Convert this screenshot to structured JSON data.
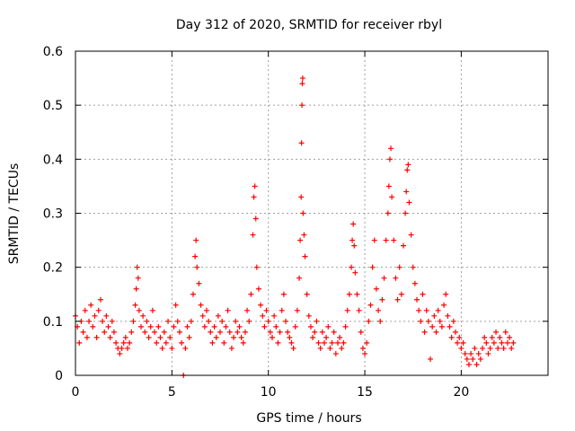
{
  "chart_data": {
    "type": "scatter",
    "title": "Day 312 of 2020, SRMTID for receiver rbyl",
    "xlabel": "GPS time / hours",
    "ylabel": "SRMTID / TECUs",
    "xlim": [
      0,
      24.5
    ],
    "ylim": [
      0,
      0.6
    ],
    "xticks": [
      0,
      5,
      10,
      15,
      20
    ],
    "xtick_labels": [
      "0",
      "5",
      "10",
      "15",
      "20"
    ],
    "yticks": [
      0,
      0.1,
      0.2,
      0.3,
      0.4,
      0.5,
      0.6
    ],
    "ytick_labels": [
      "0",
      "0.1",
      "0.2",
      "0.3",
      "0.4",
      "0.5",
      "0.6"
    ],
    "grid": true,
    "series": [
      {
        "name": "SRMTID",
        "color": "#ff0000",
        "marker": "plus",
        "points": [
          [
            0.0,
            0.11
          ],
          [
            0.1,
            0.09
          ],
          [
            0.2,
            0.06
          ],
          [
            0.3,
            0.1
          ],
          [
            0.4,
            0.08
          ],
          [
            0.5,
            0.12
          ],
          [
            0.6,
            0.07
          ],
          [
            0.7,
            0.1
          ],
          [
            0.8,
            0.13
          ],
          [
            0.9,
            0.09
          ],
          [
            1.0,
            0.11
          ],
          [
            1.1,
            0.07
          ],
          [
            1.2,
            0.12
          ],
          [
            1.3,
            0.14
          ],
          [
            1.4,
            0.1
          ],
          [
            1.5,
            0.08
          ],
          [
            1.6,
            0.11
          ],
          [
            1.7,
            0.09
          ],
          [
            1.8,
            0.07
          ],
          [
            1.9,
            0.1
          ],
          [
            2.0,
            0.08
          ],
          [
            2.1,
            0.06
          ],
          [
            2.2,
            0.05
          ],
          [
            2.3,
            0.04
          ],
          [
            2.4,
            0.05
          ],
          [
            2.5,
            0.06
          ],
          [
            2.6,
            0.07
          ],
          [
            2.7,
            0.05
          ],
          [
            2.8,
            0.06
          ],
          [
            2.9,
            0.08
          ],
          [
            3.0,
            0.1
          ],
          [
            3.1,
            0.13
          ],
          [
            3.15,
            0.16
          ],
          [
            3.2,
            0.2
          ],
          [
            3.25,
            0.18
          ],
          [
            3.3,
            0.12
          ],
          [
            3.4,
            0.09
          ],
          [
            3.5,
            0.11
          ],
          [
            3.6,
            0.08
          ],
          [
            3.7,
            0.1
          ],
          [
            3.8,
            0.07
          ],
          [
            3.9,
            0.09
          ],
          [
            4.0,
            0.12
          ],
          [
            4.1,
            0.08
          ],
          [
            4.2,
            0.06
          ],
          [
            4.3,
            0.09
          ],
          [
            4.4,
            0.07
          ],
          [
            4.5,
            0.05
          ],
          [
            4.6,
            0.08
          ],
          [
            4.7,
            0.06
          ],
          [
            4.8,
            0.1
          ],
          [
            4.9,
            0.07
          ],
          [
            5.0,
            0.05
          ],
          [
            5.1,
            0.09
          ],
          [
            5.2,
            0.13
          ],
          [
            5.3,
            0.1
          ],
          [
            5.4,
            0.08
          ],
          [
            5.5,
            0.06
          ],
          [
            5.6,
            0.0
          ],
          [
            5.7,
            0.05
          ],
          [
            5.8,
            0.09
          ],
          [
            5.9,
            0.07
          ],
          [
            6.0,
            0.1
          ],
          [
            6.1,
            0.15
          ],
          [
            6.2,
            0.22
          ],
          [
            6.25,
            0.25
          ],
          [
            6.3,
            0.2
          ],
          [
            6.4,
            0.17
          ],
          [
            6.5,
            0.13
          ],
          [
            6.6,
            0.11
          ],
          [
            6.7,
            0.09
          ],
          [
            6.8,
            0.12
          ],
          [
            6.9,
            0.1
          ],
          [
            7.0,
            0.08
          ],
          [
            7.1,
            0.06
          ],
          [
            7.2,
            0.09
          ],
          [
            7.3,
            0.07
          ],
          [
            7.4,
            0.11
          ],
          [
            7.5,
            0.08
          ],
          [
            7.6,
            0.1
          ],
          [
            7.7,
            0.06
          ],
          [
            7.8,
            0.09
          ],
          [
            7.9,
            0.12
          ],
          [
            8.0,
            0.08
          ],
          [
            8.1,
            0.05
          ],
          [
            8.2,
            0.07
          ],
          [
            8.3,
            0.1
          ],
          [
            8.4,
            0.08
          ],
          [
            8.5,
            0.09
          ],
          [
            8.6,
            0.07
          ],
          [
            8.7,
            0.06
          ],
          [
            8.8,
            0.08
          ],
          [
            8.9,
            0.12
          ],
          [
            9.0,
            0.1
          ],
          [
            9.1,
            0.15
          ],
          [
            9.2,
            0.26
          ],
          [
            9.25,
            0.33
          ],
          [
            9.3,
            0.35
          ],
          [
            9.35,
            0.29
          ],
          [
            9.4,
            0.2
          ],
          [
            9.5,
            0.16
          ],
          [
            9.6,
            0.13
          ],
          [
            9.7,
            0.11
          ],
          [
            9.8,
            0.09
          ],
          [
            9.9,
            0.12
          ],
          [
            10.0,
            0.1
          ],
          [
            10.1,
            0.08
          ],
          [
            10.2,
            0.07
          ],
          [
            10.3,
            0.11
          ],
          [
            10.4,
            0.09
          ],
          [
            10.5,
            0.06
          ],
          [
            10.6,
            0.08
          ],
          [
            10.7,
            0.12
          ],
          [
            10.8,
            0.15
          ],
          [
            10.9,
            0.1
          ],
          [
            11.0,
            0.08
          ],
          [
            11.1,
            0.07
          ],
          [
            11.2,
            0.06
          ],
          [
            11.3,
            0.05
          ],
          [
            11.4,
            0.09
          ],
          [
            11.5,
            0.12
          ],
          [
            11.6,
            0.18
          ],
          [
            11.65,
            0.25
          ],
          [
            11.7,
            0.33
          ],
          [
            11.72,
            0.43
          ],
          [
            11.74,
            0.5
          ],
          [
            11.76,
            0.54
          ],
          [
            11.78,
            0.55
          ],
          [
            11.8,
            0.3
          ],
          [
            11.85,
            0.26
          ],
          [
            11.9,
            0.22
          ],
          [
            12.0,
            0.15
          ],
          [
            12.1,
            0.11
          ],
          [
            12.2,
            0.09
          ],
          [
            12.3,
            0.07
          ],
          [
            12.4,
            0.08
          ],
          [
            12.5,
            0.1
          ],
          [
            12.6,
            0.06
          ],
          [
            12.7,
            0.05
          ],
          [
            12.8,
            0.08
          ],
          [
            12.9,
            0.06
          ],
          [
            13.0,
            0.07
          ],
          [
            13.1,
            0.09
          ],
          [
            13.2,
            0.05
          ],
          [
            13.3,
            0.06
          ],
          [
            13.4,
            0.08
          ],
          [
            13.5,
            0.04
          ],
          [
            13.6,
            0.06
          ],
          [
            13.7,
            0.07
          ],
          [
            13.8,
            0.05
          ],
          [
            13.9,
            0.06
          ],
          [
            14.0,
            0.09
          ],
          [
            14.1,
            0.12
          ],
          [
            14.2,
            0.15
          ],
          [
            14.3,
            0.2
          ],
          [
            14.35,
            0.25
          ],
          [
            14.4,
            0.28
          ],
          [
            14.45,
            0.24
          ],
          [
            14.5,
            0.19
          ],
          [
            14.6,
            0.15
          ],
          [
            14.7,
            0.12
          ],
          [
            14.8,
            0.08
          ],
          [
            14.9,
            0.05
          ],
          [
            15.0,
            0.04
          ],
          [
            15.1,
            0.06
          ],
          [
            15.2,
            0.1
          ],
          [
            15.3,
            0.13
          ],
          [
            15.4,
            0.2
          ],
          [
            15.5,
            0.25
          ],
          [
            15.6,
            0.16
          ],
          [
            15.7,
            0.12
          ],
          [
            15.8,
            0.1
          ],
          [
            15.9,
            0.14
          ],
          [
            16.0,
            0.18
          ],
          [
            16.1,
            0.25
          ],
          [
            16.2,
            0.3
          ],
          [
            16.25,
            0.35
          ],
          [
            16.3,
            0.4
          ],
          [
            16.35,
            0.42
          ],
          [
            16.4,
            0.33
          ],
          [
            16.5,
            0.25
          ],
          [
            16.6,
            0.18
          ],
          [
            16.7,
            0.14
          ],
          [
            16.8,
            0.2
          ],
          [
            16.9,
            0.15
          ],
          [
            17.0,
            0.24
          ],
          [
            17.1,
            0.3
          ],
          [
            17.15,
            0.34
          ],
          [
            17.2,
            0.38
          ],
          [
            17.25,
            0.39
          ],
          [
            17.3,
            0.32
          ],
          [
            17.4,
            0.26
          ],
          [
            17.5,
            0.2
          ],
          [
            17.6,
            0.17
          ],
          [
            17.7,
            0.14
          ],
          [
            17.8,
            0.12
          ],
          [
            17.9,
            0.1
          ],
          [
            18.0,
            0.15
          ],
          [
            18.1,
            0.08
          ],
          [
            18.2,
            0.12
          ],
          [
            18.3,
            0.1
          ],
          [
            18.4,
            0.03
          ],
          [
            18.5,
            0.09
          ],
          [
            18.6,
            0.11
          ],
          [
            18.7,
            0.08
          ],
          [
            18.8,
            0.12
          ],
          [
            18.9,
            0.1
          ],
          [
            19.0,
            0.09
          ],
          [
            19.1,
            0.13
          ],
          [
            19.2,
            0.15
          ],
          [
            19.3,
            0.11
          ],
          [
            19.4,
            0.09
          ],
          [
            19.5,
            0.07
          ],
          [
            19.6,
            0.1
          ],
          [
            19.7,
            0.08
          ],
          [
            19.8,
            0.06
          ],
          [
            19.9,
            0.07
          ],
          [
            20.0,
            0.05
          ],
          [
            20.1,
            0.06
          ],
          [
            20.2,
            0.04
          ],
          [
            20.3,
            0.03
          ],
          [
            20.4,
            0.02
          ],
          [
            20.5,
            0.04
          ],
          [
            20.6,
            0.03
          ],
          [
            20.7,
            0.05
          ],
          [
            20.8,
            0.02
          ],
          [
            20.9,
            0.04
          ],
          [
            21.0,
            0.03
          ],
          [
            21.1,
            0.05
          ],
          [
            21.2,
            0.07
          ],
          [
            21.3,
            0.06
          ],
          [
            21.4,
            0.04
          ],
          [
            21.5,
            0.05
          ],
          [
            21.6,
            0.07
          ],
          [
            21.7,
            0.06
          ],
          [
            21.8,
            0.08
          ],
          [
            21.9,
            0.05
          ],
          [
            22.0,
            0.07
          ],
          [
            22.1,
            0.06
          ],
          [
            22.2,
            0.05
          ],
          [
            22.3,
            0.08
          ],
          [
            22.4,
            0.06
          ],
          [
            22.5,
            0.07
          ],
          [
            22.6,
            0.05
          ],
          [
            22.7,
            0.06
          ]
        ]
      }
    ]
  }
}
